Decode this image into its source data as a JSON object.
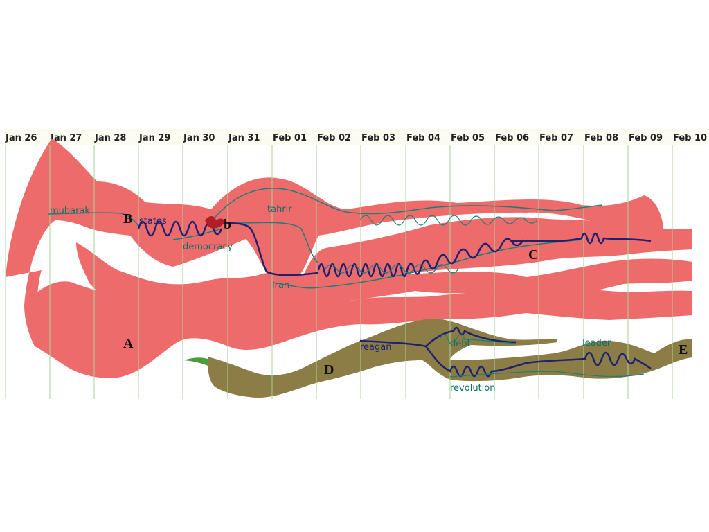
{
  "timeline": {
    "dates": [
      "Jan 26",
      "Jan 27",
      "Jan 28",
      "Jan 29",
      "Jan 30",
      "Jan 31",
      "Feb 01",
      "Feb 02",
      "Feb 03",
      "Feb 04",
      "Feb 05",
      "Feb 06",
      "Feb 07",
      "Feb 08",
      "Feb 09",
      "Feb 10"
    ]
  },
  "topics": {
    "mubarak": "mubarak",
    "states": "states",
    "democracy": "democracy",
    "tahrir": "tahrir",
    "iran": "iran",
    "reagan": "reagan",
    "debt": "debt",
    "revolution": "revolution",
    "leader": "leader"
  },
  "markers": {
    "A": "A",
    "B": "B",
    "b": "b",
    "C": "C",
    "D": "D",
    "E": "E"
  },
  "colors": {
    "red_stream": "#ee6b6b",
    "olive_stream": "#8c7c46",
    "green_stream": "#4e9a3e",
    "thread_navy": "#1d2170",
    "thread_teal": "#1b7f78",
    "gridline": "#a6d497"
  }
}
